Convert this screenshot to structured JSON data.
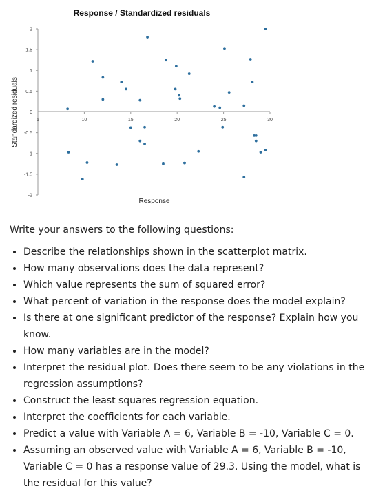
{
  "chart_data": {
    "type": "scatter",
    "title": "Response / Standardized residuals",
    "xlabel": "Response",
    "ylabel": "Standardized residuals",
    "xlim": [
      5,
      30
    ],
    "ylim": [
      -2,
      2
    ],
    "xticks": [
      5,
      10,
      15,
      20,
      25,
      30
    ],
    "yticks": [
      -2,
      -1.5,
      -1,
      -0.5,
      0,
      0.5,
      1,
      1.5,
      2
    ],
    "grid": false,
    "marker_color": "#2e6f9e",
    "points": [
      {
        "x": 8.2,
        "y": 0.07
      },
      {
        "x": 8.3,
        "y": -0.97
      },
      {
        "x": 9.8,
        "y": -1.62
      },
      {
        "x": 10.3,
        "y": -1.22
      },
      {
        "x": 10.9,
        "y": 1.22
      },
      {
        "x": 12.0,
        "y": 0.83
      },
      {
        "x": 12.0,
        "y": 0.3
      },
      {
        "x": 13.5,
        "y": -1.27
      },
      {
        "x": 14.0,
        "y": 0.72
      },
      {
        "x": 14.5,
        "y": 0.55
      },
      {
        "x": 15.0,
        "y": -0.38
      },
      {
        "x": 16.0,
        "y": 0.28
      },
      {
        "x": 16.0,
        "y": -0.7
      },
      {
        "x": 16.5,
        "y": -0.77
      },
      {
        "x": 16.5,
        "y": -0.37
      },
      {
        "x": 16.8,
        "y": 1.8
      },
      {
        "x": 18.5,
        "y": -1.25
      },
      {
        "x": 18.8,
        "y": 1.25
      },
      {
        "x": 19.8,
        "y": 0.55
      },
      {
        "x": 19.9,
        "y": 1.1
      },
      {
        "x": 20.2,
        "y": 0.4
      },
      {
        "x": 20.3,
        "y": 0.32
      },
      {
        "x": 20.8,
        "y": -1.23
      },
      {
        "x": 21.3,
        "y": 0.92
      },
      {
        "x": 22.3,
        "y": -0.95
      },
      {
        "x": 24.0,
        "y": 0.13
      },
      {
        "x": 24.6,
        "y": 0.1
      },
      {
        "x": 24.9,
        "y": -0.37
      },
      {
        "x": 25.1,
        "y": 1.53
      },
      {
        "x": 25.6,
        "y": 0.47
      },
      {
        "x": 27.2,
        "y": 0.15
      },
      {
        "x": 27.2,
        "y": -1.57
      },
      {
        "x": 27.9,
        "y": 1.27
      },
      {
        "x": 28.1,
        "y": 0.72
      },
      {
        "x": 28.3,
        "y": -0.57
      },
      {
        "x": 28.5,
        "y": -0.57
      },
      {
        "x": 28.5,
        "y": -0.7
      },
      {
        "x": 29.0,
        "y": -0.97
      },
      {
        "x": 29.5,
        "y": 2.0
      },
      {
        "x": 29.5,
        "y": -0.92
      }
    ]
  },
  "questions": {
    "intro": "Write your answers to the following questions:",
    "items": [
      "Describe the relationships shown in the scatterplot matrix.",
      "How many observations does the data represent?",
      "Which value represents the sum of squared error?",
      "What percent of variation in the response does the model explain?",
      "Is there at one significant predictor of the response? Explain how you know.",
      "How many variables are in the model?",
      "Interpret the residual plot. Does there seem to be any violations in the regression assumptions?",
      "Construct the least squares regression equation.",
      "Interpret the coefficients for each variable.",
      "Predict a value with Variable A = 6, Variable B = -10, Variable C = 0.",
      "Assuming an observed value with Variable A = 6, Variable B = -10, Variable C = 0 has a response value of 29.3. Using the model, what is the residual for this value?"
    ]
  }
}
